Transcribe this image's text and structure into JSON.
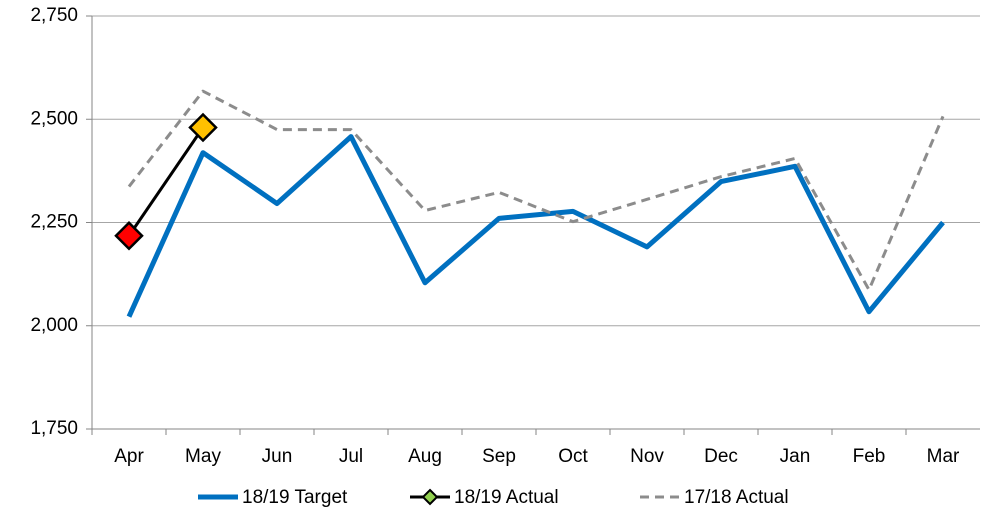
{
  "chart_data": {
    "type": "line",
    "categories": [
      "Apr",
      "May",
      "Jun",
      "Jul",
      "Aug",
      "Sep",
      "Oct",
      "Nov",
      "Dec",
      "Jan",
      "Feb",
      "Mar"
    ],
    "series": [
      {
        "name": "18/19 Target",
        "color": "#0070c0",
        "values": [
          2022,
          2419,
          2296,
          2458,
          2104,
          2260,
          2277,
          2191,
          2349,
          2386,
          2034,
          2250
        ]
      },
      {
        "name": "18/19 Actual",
        "color": "#000000",
        "marker": "diamond",
        "marker_colors": [
          "#ff0000",
          "#ffc000"
        ],
        "legend_marker_color": "#92d050",
        "values": [
          2218,
          2480,
          null,
          null,
          null,
          null,
          null,
          null,
          null,
          null,
          null,
          null
        ]
      },
      {
        "name": "17/18 Actual",
        "color": "#8c8c8c",
        "dash": true,
        "values": [
          2337,
          2568,
          2475,
          2475,
          2279,
          2323,
          2252,
          2306,
          2361,
          2405,
          2087,
          2507
        ]
      }
    ],
    "ylim": [
      1750,
      2750
    ],
    "yticks": [
      {
        "value": 1750,
        "label": "1,750"
      },
      {
        "value": 2000,
        "label": "2,000"
      },
      {
        "value": 2250,
        "label": "2,250"
      },
      {
        "value": 2500,
        "label": "2,500"
      },
      {
        "value": 2750,
        "label": "2,750"
      }
    ],
    "grid": true,
    "legend": "bottom"
  }
}
